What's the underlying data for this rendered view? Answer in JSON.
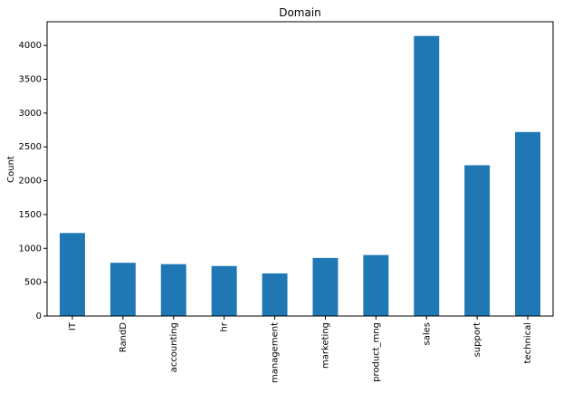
{
  "chart_data": {
    "type": "bar",
    "title": "Domain",
    "xlabel": "",
    "ylabel": "Count",
    "categories": [
      "IT",
      "RandD",
      "accounting",
      "hr",
      "management",
      "marketing",
      "product_mng",
      "sales",
      "support",
      "technical"
    ],
    "values": [
      1227,
      787,
      767,
      739,
      630,
      858,
      902,
      4140,
      2229,
      2720
    ],
    "ylim": [
      0,
      4350
    ],
    "yticks": [
      0,
      500,
      1000,
      1500,
      2000,
      2500,
      3000,
      3500,
      4000
    ],
    "bar_color": "#1f77b4",
    "grid": false
  }
}
